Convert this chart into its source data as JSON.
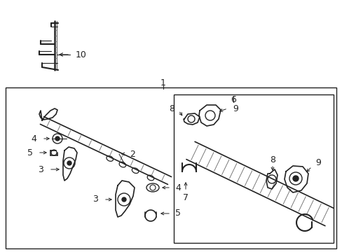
{
  "bg_color": "#ffffff",
  "line_color": "#333333",
  "fig_width": 4.89,
  "fig_height": 3.6,
  "dpi": 100,
  "gray": "#666666",
  "dark": "#222222"
}
